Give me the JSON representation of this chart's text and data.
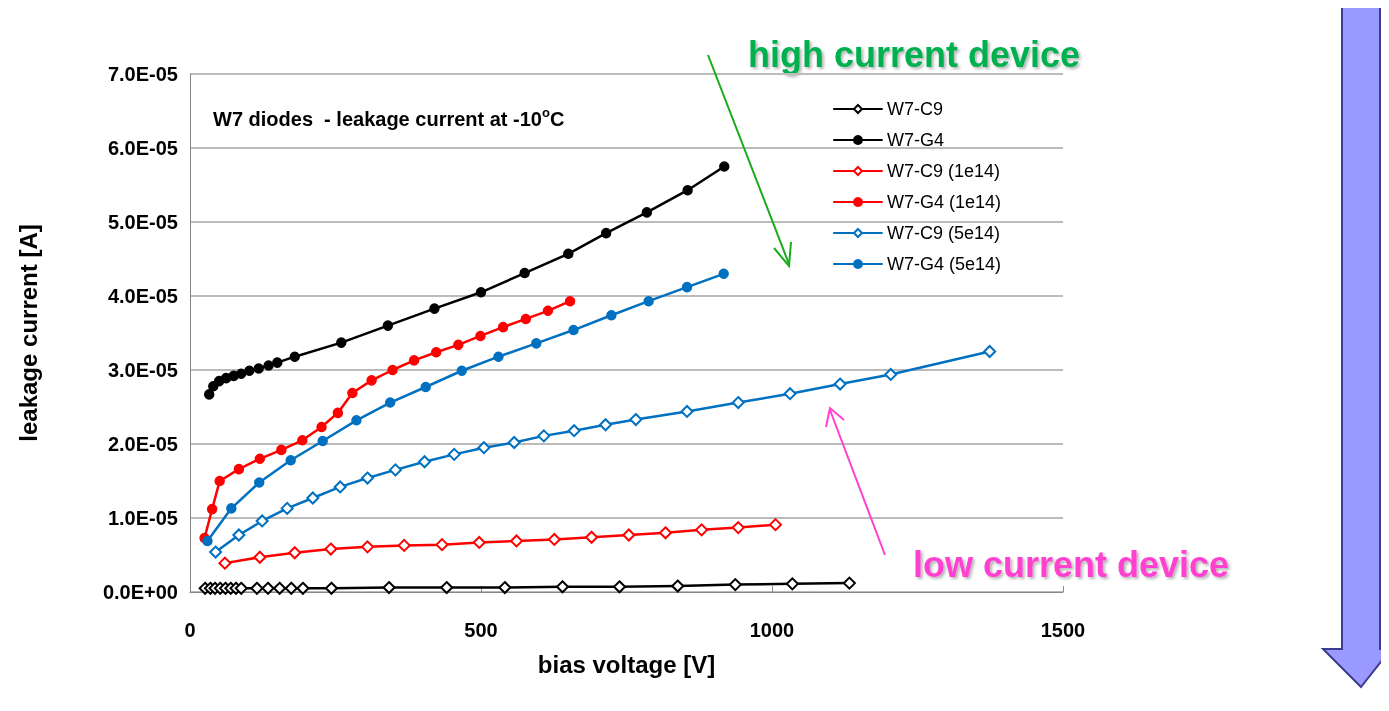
{
  "chart_data": {
    "type": "line",
    "title": "W7 diodes  - leakage current at -10$^{o}$C",
    "xlabel": "bias voltage [V]",
    "ylabel": "leakage current [A]",
    "annotations": [
      "high current device",
      "low current device"
    ],
    "xlim": [
      0,
      1500
    ],
    "xticks": [
      0,
      500,
      1000,
      1500
    ],
    "ylim": [
      0,
      7e-05
    ],
    "yticks": [
      {
        "value": 0,
        "label": "0.0E+00"
      },
      {
        "value": 1e-05,
        "label": "1.0E-05"
      },
      {
        "value": 2e-05,
        "label": "2.0E-05"
      },
      {
        "value": 3e-05,
        "label": "3.0E-05"
      },
      {
        "value": 4e-05,
        "label": "4.0E-05"
      },
      {
        "value": 5e-05,
        "label": "5.0E-05"
      },
      {
        "value": 6e-05,
        "label": "6.0E-05"
      },
      {
        "value": 7e-05,
        "label": "7.0E-05"
      }
    ],
    "grid": "y",
    "legend": "top right",
    "line_style": "solid",
    "series": [
      {
        "name": "W7-C9",
        "color": "#000000",
        "marker": "diamond",
        "x": [
          26,
          35,
          43,
          52,
          61,
          70,
          79,
          88,
          115,
          134,
          154,
          174,
          194,
          243,
          342,
          441,
          541,
          640,
          738,
          838,
          937,
          1035,
          1133
        ],
        "values": [
          5e-07,
          5e-07,
          5e-07,
          5e-07,
          5e-07,
          5e-07,
          5e-07,
          5e-07,
          5e-07,
          5e-07,
          5e-07,
          5e-07,
          5e-07,
          5e-07,
          6e-07,
          6e-07,
          6e-07,
          7e-07,
          7e-07,
          8e-07,
          1e-06,
          1.1e-06,
          1.2e-06
        ]
      },
      {
        "name": "W7-G4",
        "color": "#000000",
        "marker": "circle",
        "x": [
          33,
          40,
          50,
          62,
          75,
          88,
          102,
          118,
          135,
          150,
          180,
          260,
          340,
          420,
          500,
          575,
          650,
          715,
          785,
          855,
          918
        ],
        "values": [
          2.67e-05,
          2.78e-05,
          2.85e-05,
          2.89e-05,
          2.92e-05,
          2.95e-05,
          2.99e-05,
          3.02e-05,
          3.06e-05,
          3.1e-05,
          3.18e-05,
          3.37e-05,
          3.6e-05,
          3.83e-05,
          4.05e-05,
          4.31e-05,
          4.57e-05,
          4.85e-05,
          5.13e-05,
          5.43e-05,
          5.75e-05
        ]
      },
      {
        "name": "W7-C9 (1e14)",
        "color": "#ff0000",
        "marker": "diamond",
        "x": [
          60,
          120,
          180,
          242,
          305,
          368,
          433,
          497,
          561,
          626,
          690,
          754,
          817,
          879,
          942,
          1006
        ],
        "values": [
          3.9e-06,
          4.7e-06,
          5.3e-06,
          5.8e-06,
          6.1e-06,
          6.3e-06,
          6.4e-06,
          6.7e-06,
          6.9e-06,
          7.1e-06,
          7.4e-06,
          7.7e-06,
          8e-06,
          8.4e-06,
          8.7e-06,
          9.1e-06
        ]
      },
      {
        "name": "W7-G4 (1e14)",
        "color": "#ff0000",
        "marker": "circle",
        "x": [
          25,
          38,
          51,
          84,
          120,
          157,
          193,
          226,
          254,
          279,
          312,
          348,
          385,
          423,
          461,
          499,
          538,
          577,
          615,
          653
        ],
        "values": [
          7.3e-06,
          1.12e-05,
          1.5e-05,
          1.66e-05,
          1.8e-05,
          1.92e-05,
          2.05e-05,
          2.23e-05,
          2.42e-05,
          2.69e-05,
          2.86e-05,
          3e-05,
          3.13e-05,
          3.24e-05,
          3.34e-05,
          3.46e-05,
          3.58e-05,
          3.69e-05,
          3.8e-05,
          3.93e-05
        ]
      },
      {
        "name": "W7-C9 (5e14)",
        "color": "#0070c0",
        "marker": "diamond",
        "x": [
          44,
          84,
          124,
          167,
          211,
          258,
          305,
          353,
          403,
          454,
          505,
          557,
          608,
          660,
          714,
          766,
          854,
          942,
          1031,
          1117,
          1204,
          1374
        ],
        "values": [
          5.4e-06,
          7.7e-06,
          9.6e-06,
          1.13e-05,
          1.27e-05,
          1.42e-05,
          1.54e-05,
          1.65e-05,
          1.76e-05,
          1.86e-05,
          1.95e-05,
          2.02e-05,
          2.11e-05,
          2.18e-05,
          2.26e-05,
          2.33e-05,
          2.44e-05,
          2.56e-05,
          2.68e-05,
          2.81e-05,
          2.94e-05,
          3.25e-05
        ]
      },
      {
        "name": "W7-G4 (5e14)",
        "color": "#0070c0",
        "marker": "circle",
        "x": [
          30,
          71,
          119,
          173,
          228,
          286,
          344,
          405,
          467,
          530,
          595,
          659,
          724,
          788,
          854,
          917
        ],
        "values": [
          6.9e-06,
          1.13e-05,
          1.48e-05,
          1.78e-05,
          2.04e-05,
          2.32e-05,
          2.56e-05,
          2.77e-05,
          2.99e-05,
          3.18e-05,
          3.36e-05,
          3.54e-05,
          3.74e-05,
          3.93e-05,
          4.12e-05,
          4.3e-05
        ]
      }
    ]
  }
}
